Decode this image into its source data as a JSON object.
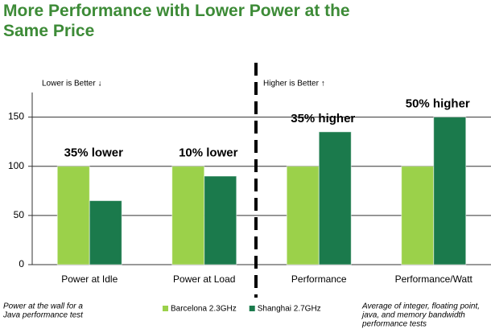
{
  "chart_data": {
    "type": "bar",
    "title_lines": [
      "More Performance with Lower Power at the",
      "Same Price"
    ],
    "categories": [
      "Power at Idle",
      "Power at Load",
      "Performance",
      "Performance/Watt"
    ],
    "series": [
      {
        "name": "Barcelona 2.3GHz",
        "color": "#9bd14a",
        "values": [
          100,
          100,
          100,
          100
        ]
      },
      {
        "name": "Shanghai 2.7GHz",
        "color": "#1b7a4c",
        "values": [
          65,
          90,
          135,
          150
        ]
      }
    ],
    "ylim": [
      0,
      175
    ],
    "yticks": [
      0,
      50,
      100,
      150
    ],
    "grid": true,
    "annotations": [
      "35% lower",
      "10% lower",
      "35% higher",
      "50% higher"
    ],
    "notes": [
      "Lower is Better ↓",
      "Higher is Better ↑"
    ],
    "footnotes": [
      [
        "Power at the wall for a",
        "Java performance test"
      ],
      [
        "Average of integer, floating point,",
        "java, and memory bandwidth",
        "performance tests"
      ]
    ]
  }
}
